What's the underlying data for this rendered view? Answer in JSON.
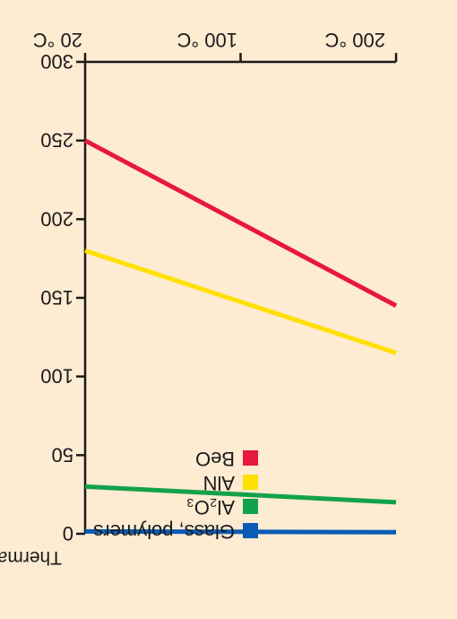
{
  "colors": {
    "background": "#fdebd2",
    "axis": "#1a1a1a"
  },
  "chart_data": {
    "type": "line",
    "orientation": "mirrored-upside-down",
    "xlabel": "",
    "ylabel": "Thermal conductivity",
    "x_tick_labels": [
      "20 °C",
      "100 °C",
      "200 °C"
    ],
    "x": [
      20,
      200
    ],
    "xlim": [
      20,
      200
    ],
    "y_ticks": [
      0,
      50,
      100,
      150,
      200,
      250,
      300
    ],
    "ylim": [
      0,
      300
    ],
    "y_inverted": true,
    "grid": false,
    "legend_position": "bottom-right",
    "series": [
      {
        "name": "Glass, polymers",
        "color": "#0a5bb5",
        "values": [
          1.5,
          1
        ]
      },
      {
        "name": "Al₂O₃",
        "color": "#12a24a",
        "values": [
          30,
          20
        ]
      },
      {
        "name": "AlN",
        "color": "#ffe000",
        "values": [
          180,
          115
        ]
      },
      {
        "name": "BeO",
        "color": "#e8173e",
        "values": [
          250,
          145
        ]
      }
    ]
  }
}
